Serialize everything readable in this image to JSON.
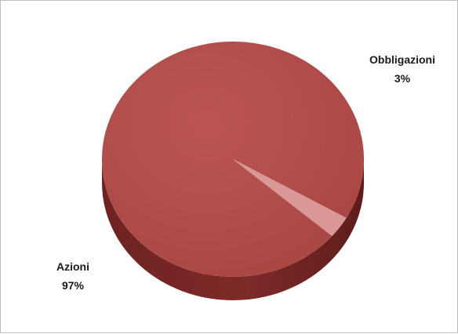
{
  "chart_data": {
    "type": "pie",
    "style": "3d",
    "slices": [
      {
        "label": "Azioni",
        "value": 97,
        "value_label": "97%",
        "color": "#b04a48"
      },
      {
        "label": "Obbligazioni",
        "value": 3,
        "value_label": "3%",
        "color": "#d99796"
      }
    ],
    "legend": "none"
  }
}
